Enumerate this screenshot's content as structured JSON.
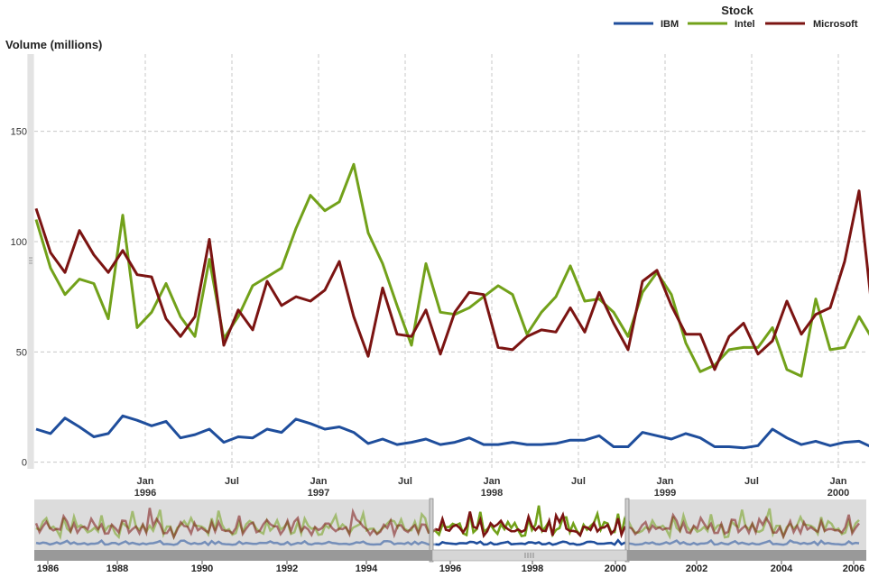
{
  "chart_data": {
    "type": "line",
    "ylabel": "Volume (millions)",
    "ylim": [
      -3,
      185
    ],
    "y_ticks": [
      0,
      50,
      100,
      150
    ],
    "legend": {
      "title": "Stock",
      "placement": "top-right"
    },
    "x_ticks": [
      {
        "line1": "Jan",
        "line2": "1996"
      },
      {
        "line1": "Jul",
        "line2": ""
      },
      {
        "line1": "Jan",
        "line2": "1997"
      },
      {
        "line1": "Jul",
        "line2": ""
      },
      {
        "line1": "Jan",
        "line2": "1998"
      },
      {
        "line1": "Jul",
        "line2": ""
      },
      {
        "line1": "Jan",
        "line2": "1999"
      },
      {
        "line1": "Jul",
        "line2": ""
      },
      {
        "line1": "Jan",
        "line2": "2000"
      }
    ],
    "x_range": [
      "1995-05",
      "2000-08"
    ],
    "grid": true,
    "series": [
      {
        "name": "IBM",
        "color": "#1f4e9c",
        "values": [
          15,
          13,
          20,
          16,
          11.5,
          13,
          21,
          19,
          16.5,
          18.5,
          11,
          12.5,
          15,
          9,
          11.5,
          11,
          15,
          13.5,
          19.5,
          17.5,
          15,
          16,
          13.5,
          8.5,
          10.5,
          8,
          9,
          10.5,
          8,
          9,
          11,
          8,
          8,
          9,
          8,
          8,
          8.5,
          10,
          10,
          12,
          7,
          7,
          13.5,
          12,
          10.5,
          13,
          11,
          7,
          7,
          6.5,
          7.5,
          15,
          11,
          8,
          9.5,
          7.5,
          9,
          9.5,
          6.5
        ]
      },
      {
        "name": "Intel",
        "color": "#72a11a",
        "values": [
          110,
          88,
          76,
          83,
          81,
          65,
          112,
          61,
          68,
          81,
          66,
          57,
          92,
          56,
          66,
          80,
          84,
          88,
          106,
          121,
          114,
          118,
          135,
          104,
          90,
          71,
          53,
          90,
          68,
          67,
          70,
          75,
          80,
          76,
          58,
          68,
          75,
          89,
          73,
          74,
          68,
          57,
          77,
          86,
          76,
          54,
          41,
          44,
          51,
          52,
          52,
          61,
          42,
          39,
          74,
          51,
          52,
          66,
          55
        ]
      },
      {
        "name": "Microsoft",
        "color": "#7b1412",
        "values": [
          115,
          95,
          86,
          105,
          94,
          86,
          96,
          85,
          84,
          65,
          57,
          66,
          101,
          53,
          69,
          60,
          82,
          71,
          75,
          73,
          78,
          91,
          66,
          48,
          79,
          58,
          57,
          69,
          49,
          68,
          77,
          76,
          52,
          51,
          57,
          60,
          59,
          70,
          59,
          77,
          63,
          51,
          82,
          87,
          71,
          58,
          58,
          42,
          57,
          63,
          49,
          55,
          73,
          58,
          67,
          70,
          91,
          123,
          63
        ]
      }
    ],
    "navigator": {
      "x_ticks": [
        "1986",
        "1988",
        "1990",
        "1992",
        "1994",
        "1996",
        "1998",
        "2000",
        "2002",
        "2004",
        "2006"
      ]
    }
  }
}
